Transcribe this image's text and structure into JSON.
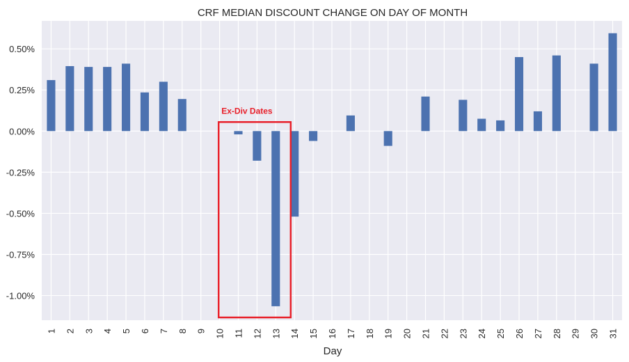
{
  "chart_data": {
    "type": "bar",
    "title": "CRF MEDIAN DISCOUNT CHANGE ON DAY OF MONTH",
    "xlabel": "Day",
    "ylabel": "",
    "categories": [
      "1",
      "2",
      "3",
      "4",
      "5",
      "6",
      "7",
      "8",
      "9",
      "10",
      "11",
      "12",
      "13",
      "14",
      "15",
      "16",
      "17",
      "18",
      "19",
      "20",
      "21",
      "22",
      "23",
      "24",
      "25",
      "26",
      "27",
      "28",
      "29",
      "30",
      "31"
    ],
    "values": [
      0.31,
      0.395,
      0.39,
      0.39,
      0.41,
      0.235,
      0.3,
      0.195,
      0,
      0,
      -0.02,
      -0.18,
      -1.065,
      -0.52,
      -0.06,
      0,
      0.095,
      0,
      -0.09,
      0,
      0.21,
      0,
      0.19,
      0.075,
      0.065,
      0.45,
      0.12,
      0.46,
      0,
      0.41,
      0.595
    ],
    "ylim": [
      -1.15,
      0.67
    ],
    "yticks": [
      0.5,
      0.25,
      0.0,
      -0.25,
      -0.5,
      -0.75,
      -1.0
    ],
    "ytick_labels": [
      "0.50%",
      "0.25%",
      "0.00%",
      "-0.25%",
      "-0.50%",
      "-0.75%",
      "-1.00%"
    ],
    "grid": true,
    "colors": {
      "bar": "#4c72b0",
      "background": "#eaeaf2",
      "grid": "#ffffff",
      "annotation": "#e8202a"
    },
    "annotation": {
      "text": "Ex-Div Dates",
      "from_category": "10",
      "to_category": "13",
      "y_top": 0.055
    }
  }
}
